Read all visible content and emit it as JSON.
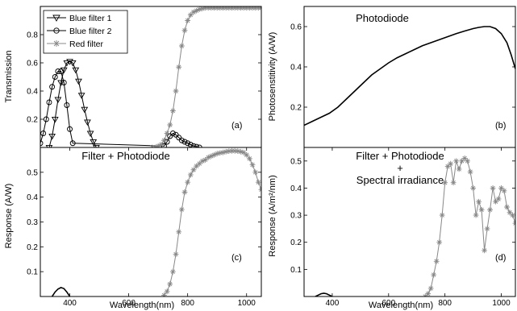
{
  "chart_data": [
    {
      "panel": "(a)",
      "type": "line",
      "title": "",
      "xlabel": "",
      "ylabel": "Transmission",
      "xlim": [
        300,
        1050
      ],
      "ylim": [
        0,
        1
      ],
      "xticks": [],
      "yticks": [
        0.2,
        0.4,
        0.6,
        0.8
      ],
      "legend_position": "top-left",
      "series": [
        {
          "name": "Blue filter 1",
          "color": "#000000",
          "marker": "triangle-down",
          "x": [
            330,
            340,
            350,
            360,
            370,
            380,
            390,
            400,
            410,
            420,
            430,
            440,
            450,
            460,
            470,
            480,
            490
          ],
          "y": [
            0.0,
            0.08,
            0.2,
            0.34,
            0.46,
            0.55,
            0.6,
            0.61,
            0.6,
            0.55,
            0.47,
            0.37,
            0.27,
            0.18,
            0.1,
            0.04,
            0.0
          ]
        },
        {
          "name": "Blue filter 2",
          "color": "#000000",
          "marker": "circle",
          "x": [
            300,
            310,
            320,
            330,
            340,
            350,
            360,
            370,
            380,
            390,
            400,
            410,
            720,
            730,
            740,
            750,
            760,
            770,
            780,
            790,
            800,
            810,
            820,
            830,
            840
          ],
          "y": [
            0.03,
            0.1,
            0.2,
            0.32,
            0.43,
            0.5,
            0.54,
            0.54,
            0.46,
            0.3,
            0.13,
            0.03,
            0.01,
            0.04,
            0.08,
            0.1,
            0.09,
            0.07,
            0.05,
            0.04,
            0.03,
            0.02,
            0.01,
            0.005,
            0.0
          ]
        },
        {
          "name": "Red filter",
          "color": "#888888",
          "marker": "asterisk",
          "x": [
            680,
            690,
            700,
            710,
            720,
            730,
            740,
            750,
            760,
            770,
            780,
            790,
            800,
            810,
            820,
            830,
            840,
            850,
            860,
            870,
            880,
            890,
            900,
            910,
            920,
            930,
            940,
            950,
            960,
            970,
            980,
            990,
            1000,
            1010,
            1020,
            1030,
            1040,
            1050
          ],
          "y": [
            0.0,
            0.0,
            0.01,
            0.02,
            0.05,
            0.1,
            0.16,
            0.26,
            0.4,
            0.57,
            0.72,
            0.83,
            0.9,
            0.94,
            0.96,
            0.97,
            0.98,
            0.985,
            0.99,
            0.99,
            0.99,
            0.99,
            0.99,
            0.99,
            0.99,
            0.99,
            0.99,
            0.99,
            0.99,
            0.99,
            0.99,
            0.99,
            0.99,
            0.99,
            0.99,
            0.99,
            0.99,
            0.99
          ]
        }
      ]
    },
    {
      "panel": "(b)",
      "type": "line",
      "title": "Photodiode",
      "xlabel": "",
      "ylabel": "Photosenstitivity (A/W)",
      "xlim": [
        300,
        1050
      ],
      "ylim": [
        0,
        0.7
      ],
      "xticks": [],
      "yticks": [
        0.2,
        0.4,
        0.6
      ],
      "series": [
        {
          "color": "#000000",
          "marker": "none",
          "x": [
            300,
            330,
            360,
            390,
            420,
            450,
            480,
            510,
            540,
            570,
            600,
            630,
            660,
            690,
            720,
            750,
            780,
            810,
            840,
            870,
            900,
            920,
            940,
            960,
            980,
            1000,
            1020,
            1035,
            1050
          ],
          "y": [
            0.11,
            0.13,
            0.15,
            0.17,
            0.2,
            0.24,
            0.28,
            0.32,
            0.36,
            0.39,
            0.42,
            0.445,
            0.465,
            0.485,
            0.505,
            0.52,
            0.535,
            0.55,
            0.565,
            0.578,
            0.59,
            0.596,
            0.6,
            0.6,
            0.59,
            0.565,
            0.52,
            0.46,
            0.39
          ]
        }
      ]
    },
    {
      "panel": "(c)",
      "type": "line",
      "title": "Filter + Photodiode",
      "xlabel": "Wavelength(nm)",
      "ylabel": "Response (A/W)",
      "xlim": [
        300,
        1050
      ],
      "ylim": [
        0,
        0.6
      ],
      "xticks": [
        400,
        600,
        800,
        1000
      ],
      "yticks": [
        0.1,
        0.2,
        0.3,
        0.4,
        0.5
      ],
      "series": [
        {
          "color": "#000000",
          "marker": "none",
          "x": [
            340,
            350,
            360,
            370,
            380,
            390,
            400
          ],
          "y": [
            0.0,
            0.018,
            0.03,
            0.036,
            0.032,
            0.018,
            0.0
          ]
        },
        {
          "color": "#888888",
          "marker": "asterisk",
          "x": [
            720,
            730,
            740,
            750,
            760,
            770,
            780,
            790,
            800,
            810,
            820,
            830,
            840,
            850,
            860,
            870,
            880,
            890,
            900,
            910,
            920,
            930,
            940,
            950,
            960,
            970,
            980,
            990,
            1000,
            1010,
            1020,
            1030,
            1040,
            1050
          ],
          "y": [
            0.005,
            0.02,
            0.05,
            0.1,
            0.17,
            0.26,
            0.35,
            0.42,
            0.46,
            0.49,
            0.51,
            0.525,
            0.535,
            0.545,
            0.55,
            0.56,
            0.565,
            0.57,
            0.575,
            0.578,
            0.58,
            0.583,
            0.585,
            0.586,
            0.586,
            0.585,
            0.583,
            0.58,
            0.57,
            0.555,
            0.53,
            0.5,
            0.46,
            0.43
          ]
        }
      ]
    },
    {
      "panel": "(d)",
      "type": "line",
      "title": "Filter + Photodiode",
      "title_line2": "+",
      "title_line3": "Spectral irradiance",
      "xlabel": "Wavelength(nm)",
      "ylabel": "Response (A/m²/nm)",
      "xlim": [
        300,
        1050
      ],
      "ylim": [
        0,
        0.55
      ],
      "xticks": [
        400,
        600,
        800,
        1000
      ],
      "yticks": [
        0.1,
        0.2,
        0.3,
        0.4,
        0.5
      ],
      "series": [
        {
          "color": "#000000",
          "marker": "none",
          "x": [
            340,
            350,
            360,
            370,
            380,
            390,
            400
          ],
          "y": [
            0.0,
            0.005,
            0.01,
            0.012,
            0.01,
            0.005,
            0.0
          ]
        },
        {
          "color": "#888888",
          "marker": "asterisk",
          "x": [
            730,
            740,
            750,
            760,
            770,
            780,
            790,
            800,
            810,
            820,
            830,
            840,
            850,
            860,
            870,
            880,
            890,
            900,
            910,
            920,
            930,
            940,
            950,
            960,
            970,
            980,
            990,
            1000,
            1010,
            1020,
            1030,
            1040,
            1050
          ],
          "y": [
            0.0,
            0.01,
            0.03,
            0.08,
            0.13,
            0.2,
            0.3,
            0.42,
            0.48,
            0.49,
            0.42,
            0.5,
            0.47,
            0.5,
            0.51,
            0.5,
            0.46,
            0.4,
            0.3,
            0.35,
            0.32,
            0.17,
            0.25,
            0.32,
            0.4,
            0.35,
            0.36,
            0.4,
            0.39,
            0.33,
            0.31,
            0.3,
            0.27
          ]
        }
      ]
    }
  ]
}
